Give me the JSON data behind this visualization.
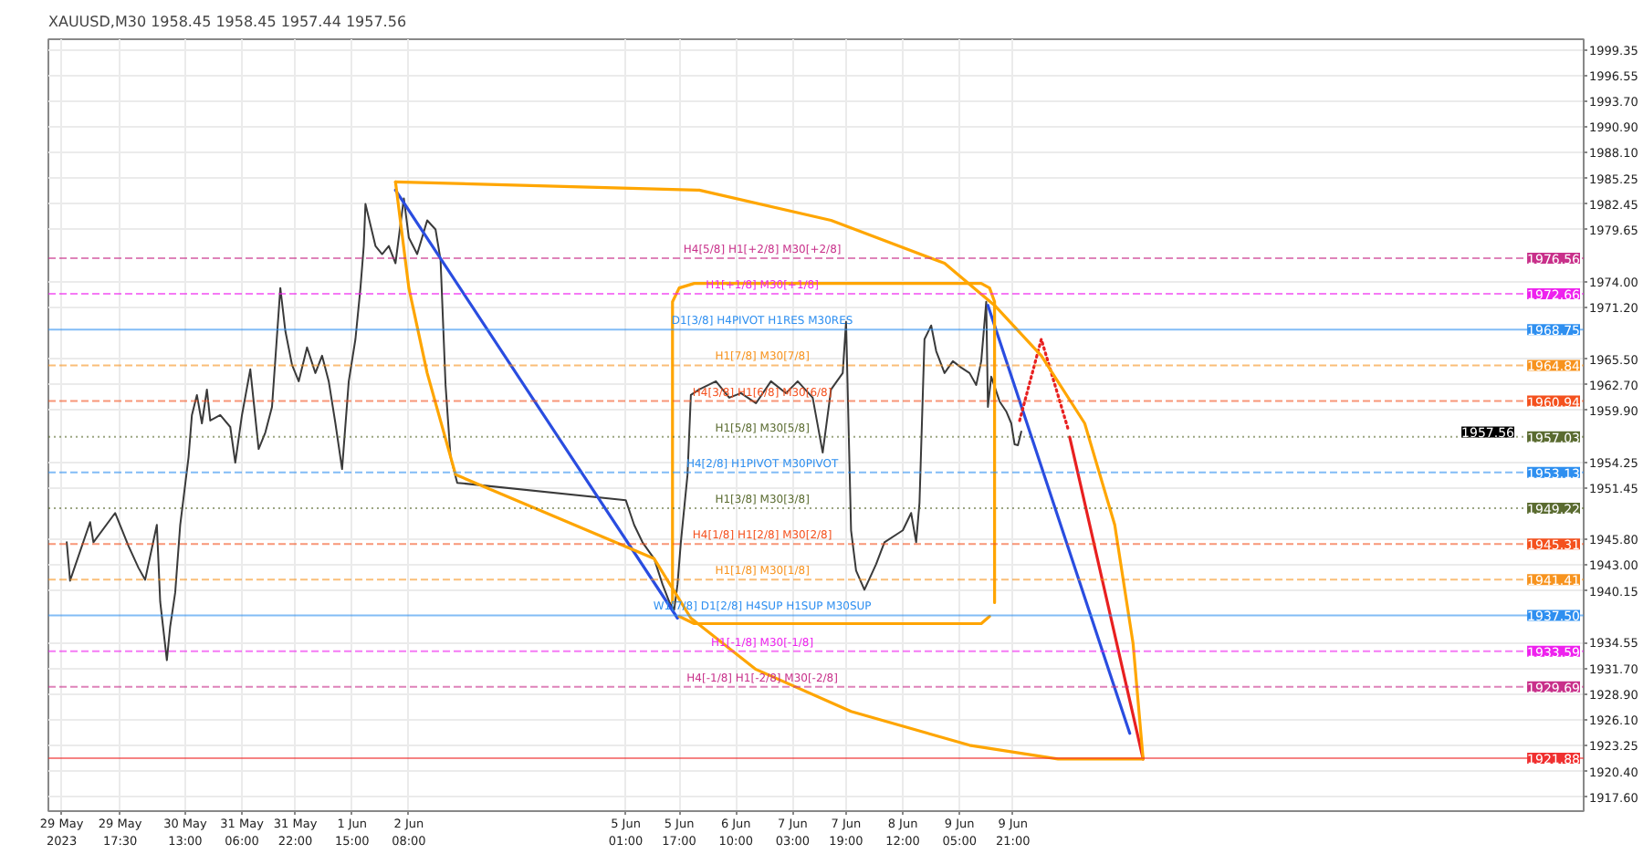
{
  "chart_data": {
    "type": "line",
    "title": "XAUUSD,M30  1958.45 1958.45 1957.44 1957.56",
    "xlim": [
      "2023-05-28T20:00",
      "2023-06-17T00:00"
    ],
    "ylim": [
      1916.1,
      2000.5
    ],
    "xticks": [
      {
        "value": "2023-05-29T00:00",
        "label": "29 May 2023"
      },
      {
        "value": "2023-05-29T17:30",
        "label": "29 May 17:30"
      },
      {
        "value": "2023-05-30T13:00",
        "label": "30 May 13:00"
      },
      {
        "value": "2023-05-31T06:00",
        "label": "31 May 06:00"
      },
      {
        "value": "2023-05-31T22:00",
        "label": "31 May 22:00"
      },
      {
        "value": "2023-06-01T15:00",
        "label": "1 Jun 15:00"
      },
      {
        "value": "2023-06-02T08:00",
        "label": "2 Jun 08:00"
      },
      {
        "value": "2023-06-05T01:00",
        "label": "5 Jun 01:00"
      },
      {
        "value": "2023-06-05T17:00",
        "label": "5 Jun 17:00"
      },
      {
        "value": "2023-06-06T10:00",
        "label": "6 Jun 10:00"
      },
      {
        "value": "2023-06-07T03:00",
        "label": "7 Jun 03:00"
      },
      {
        "value": "2023-06-07T19:00",
        "label": "7 Jun 19:00"
      },
      {
        "value": "2023-06-08T12:00",
        "label": "8 Jun 12:00"
      },
      {
        "value": "2023-06-09T05:00",
        "label": "9 Jun 05:00"
      },
      {
        "value": "2023-06-09T21:00",
        "label": "9 Jun 21:00"
      }
    ],
    "yticks": [
      1999.35,
      1996.55,
      {
        "value": 1993.7,
        "label": "1993.70"
      },
      {
        "value": 1990.9,
        "label": "1990.90"
      },
      {
        "value": 1988.1,
        "label": "1988.10"
      },
      1985.25,
      1982.45,
      1979.65,
      {
        "value": 1974.0,
        "label": "1974.00"
      },
      {
        "value": 1971.2,
        "label": "1971.20"
      },
      {
        "value": 1965.5,
        "label": "1965.50"
      },
      {
        "value": 1962.7,
        "label": "1962.70"
      },
      {
        "value": 1959.9,
        "label": "1959.90"
      },
      1954.25,
      1951.45,
      {
        "value": 1945.8,
        "label": "1945.80"
      },
      {
        "value": 1943.0,
        "label": "1943.00"
      },
      1940.15,
      1934.55,
      {
        "value": 1931.7,
        "label": "1931.70"
      },
      {
        "value": 1928.9,
        "label": "1928.90"
      },
      {
        "value": 1926.1,
        "label": "1926.10"
      },
      1923.25,
      {
        "value": 1920.4,
        "label": "1920.40"
      },
      {
        "value": 1917.6,
        "label": "1917.60"
      }
    ],
    "grid": true,
    "series": [
      {
        "color": "#3a3a3a",
        "line_style": "solid",
        "x": [
          "2023-05-29T01:30",
          "2023-05-29T02:30",
          "2023-05-29T08:30",
          "2023-05-29T09:30",
          "2023-05-29T16:00",
          "2023-05-29T20:00",
          "2023-05-29T23:00",
          "2023-05-30T01:00",
          "2023-05-30T04:30",
          "2023-05-30T05:30",
          "2023-05-30T07:30",
          "2023-05-30T08:30",
          "2023-05-30T10:00",
          "2023-05-30T11:30",
          "2023-05-30T14:00",
          "2023-05-30T15:00",
          "2023-05-30T16:30",
          "2023-05-30T18:00",
          "2023-05-30T19:30",
          "2023-05-30T20:30",
          "2023-05-30T23:30",
          "2023-05-31T02:30",
          "2023-05-31T04:00",
          "2023-05-31T06:00",
          "2023-05-31T08:30",
          "2023-05-31T11:00",
          "2023-05-31T13:00",
          "2023-05-31T15:00",
          "2023-05-31T17:30",
          "2023-05-31T19:00",
          "2023-05-31T21:00",
          "2023-05-31T23:00",
          "2023-06-01T01:30",
          "2023-06-01T04:00",
          "2023-06-01T06:00",
          "2023-06-01T08:00",
          "2023-06-01T10:00",
          "2023-06-01T12:00",
          "2023-06-01T14:00",
          "2023-06-01T16:00",
          "2023-06-01T17:30",
          "2023-06-01T18:30",
          "2023-06-01T19:00",
          "2023-06-01T22:00",
          "2023-06-02T00:00",
          "2023-06-02T02:00",
          "2023-06-02T04:00",
          "2023-06-02T06:30",
          "2023-06-02T08:00",
          "2023-06-02T10:30",
          "2023-06-02T13:30",
          "2023-06-02T16:00",
          "2023-06-02T17:30",
          "2023-06-02T19:00",
          "2023-06-02T20:30",
          "2023-06-02T22:30",
          "2023-06-05T01:00",
          "2023-06-05T03:30",
          "2023-06-05T06:00",
          "2023-06-05T09:30",
          "2023-06-05T12:00",
          "2023-06-05T14:00",
          "2023-06-05T15:30",
          "2023-06-05T16:30",
          "2023-06-05T17:30",
          "2023-06-05T19:30",
          "2023-06-05T20:30",
          "2023-06-05T23:00",
          "2023-06-06T04:00",
          "2023-06-06T08:00",
          "2023-06-06T11:30",
          "2023-06-06T16:00",
          "2023-06-06T20:30",
          "2023-06-07T01:00",
          "2023-06-07T04:30",
          "2023-06-07T09:00",
          "2023-06-07T12:00",
          "2023-06-07T14:30",
          "2023-06-07T18:00",
          "2023-06-07T19:00",
          "2023-06-07T20:30",
          "2023-06-07T22:00",
          "2023-06-08T00:30",
          "2023-06-08T04:00",
          "2023-06-08T06:30",
          "2023-06-08T12:00",
          "2023-06-08T14:30",
          "2023-06-08T16:00",
          "2023-06-08T17:00",
          "2023-06-08T18:30",
          "2023-06-08T20:30",
          "2023-06-08T22:00",
          "2023-06-09T00:30",
          "2023-06-09T03:00",
          "2023-06-09T05:30",
          "2023-06-09T08:00",
          "2023-06-09T10:00",
          "2023-06-09T11:30",
          "2023-06-09T13:00",
          "2023-06-09T13:30",
          "2023-06-09T14:30",
          "2023-06-09T17:00",
          "2023-06-09T19:00",
          "2023-06-09T20:30",
          "2023-06-09T21:30",
          "2023-06-09T22:30",
          "2023-06-09T23:30"
        ],
        "values": [
          1945.5,
          1941.3,
          1947.7,
          1945.5,
          1948.7,
          1945.1,
          1942.7,
          1941.4,
          1947.4,
          1939.0,
          1932.6,
          1936.3,
          1940.0,
          1947.4,
          1954.8,
          1959.4,
          1961.6,
          1958.5,
          1962.2,
          1958.8,
          1959.4,
          1958.1,
          1954.2,
          1959.4,
          1964.4,
          1955.7,
          1957.5,
          1960.3,
          1973.3,
          1968.6,
          1964.9,
          1963.1,
          1966.8,
          1964.0,
          1965.9,
          1963.1,
          1958.5,
          1953.5,
          1963.1,
          1967.7,
          1973.3,
          1977.9,
          1982.5,
          1977.9,
          1977.0,
          1977.9,
          1976.0,
          1983.1,
          1978.8,
          1977.0,
          1980.7,
          1979.7,
          1976.4,
          1962.7,
          1954.8,
          1952.0,
          1950.1,
          1947.4,
          1945.5,
          1943.7,
          1940.9,
          1939.0,
          1938.1,
          1940.9,
          1945.5,
          1952.9,
          1961.6,
          1962.2,
          1963.1,
          1961.3,
          1961.8,
          1960.7,
          1963.1,
          1961.8,
          1963.1,
          1961.3,
          1955.3,
          1962.2,
          1964.0,
          1969.6,
          1946.8,
          1942.4,
          1940.3,
          1943.1,
          1945.5,
          1946.8,
          1948.7,
          1945.5,
          1949.8,
          1967.7,
          1969.2,
          1966.4,
          1964.0,
          1965.3,
          1964.6,
          1964.0,
          1962.7,
          1965.3,
          1971.8,
          1960.3,
          1963.6,
          1960.9,
          1959.8,
          1958.5,
          1956.2,
          1956.1,
          1957.6
        ]
      },
      {
        "color": "#2a4de0",
        "line_style": "solid",
        "x": [
          "2023-06-02T04:00",
          "2023-06-05T16:30"
        ],
        "values": [
          1984.0,
          1937.2
        ]
      },
      {
        "color": "#2a4de0",
        "line_style": "solid",
        "x": [
          "2023-06-09T13:30",
          "2023-06-11T08:00"
        ],
        "values": [
          1971.4,
          1924.6
        ]
      },
      {
        "color": "#e82020",
        "line_style": "solid",
        "x": [
          "2023-06-10T14:00",
          "2023-06-11T12:00"
        ],
        "values": [
          1957.0,
          1921.8
        ]
      },
      {
        "color": "#e82020",
        "line_style": "dotted",
        "x": [
          "2023-06-09T23:00",
          "2023-06-10T05:30",
          "2023-06-10T13:30"
        ],
        "values": [
          1958.8,
          1967.7,
          1957.9
        ]
      },
      {
        "color": "#ffa500",
        "line_style": "solid",
        "x": [
          "2023-06-05T15:00",
          "2023-06-05T15:00",
          "2023-06-05T17:00",
          "2023-06-05T21:30",
          "2023-06-09T11:30",
          "2023-06-09T14:00",
          "2023-06-09T15:30",
          "2023-06-09T15:30"
        ],
        "values": [
          1938.9,
          1971.8,
          1973.3,
          1973.8,
          1973.8,
          1973.3,
          1971.8,
          1938.9
        ]
      },
      {
        "color": "#ffa400",
        "line_style": "solid",
        "x": [
          "2023-06-05T17:00",
          "2023-06-05T21:30",
          "2023-06-09T11:30",
          "2023-06-09T14:00"
        ],
        "values": [
          1937.4,
          1936.6,
          1936.6,
          1937.4
        ]
      },
      {
        "color": "#fea500",
        "line_style": "solid",
        "x": [
          "2023-06-02T04:00",
          "2023-06-02T08:00",
          "2023-06-02T13:30",
          "2023-06-02T22:00",
          "2023-06-05T09:30",
          "2023-06-05T20:30",
          "2023-06-06T16:00",
          "2023-06-07T20:30",
          "2023-06-09T08:00",
          "2023-06-10T10:30",
          "2023-06-11T12:00"
        ],
        "values": [
          1984.9,
          1973.3,
          1964.0,
          1952.9,
          1943.7,
          1937.2,
          1931.6,
          1927.0,
          1923.3,
          1921.8,
          1921.8
        ]
      },
      {
        "color": "#ffa600",
        "line_style": "solid",
        "x": [
          "2023-06-02T04:00",
          "2023-06-05T23:00",
          "2023-06-07T14:30",
          "2023-06-09T00:30",
          "2023-06-09T15:30",
          "2023-06-10T05:30",
          "2023-06-10T18:30",
          "2023-06-11T03:30",
          "2023-06-11T09:00",
          "2023-06-11T12:00"
        ],
        "values": [
          1984.9,
          1984.0,
          1980.7,
          1976.0,
          1971.4,
          1965.9,
          1958.5,
          1947.4,
          1934.4,
          1921.8
        ]
      }
    ],
    "ref_lines": [
      {
        "axis": "y",
        "value": 1976.56,
        "label": "H4[5/8] H1[+2/8] M30[+2/8]",
        "color": "#c8308a",
        "line_style": "dashed"
      },
      {
        "axis": "y",
        "value": 1972.66,
        "label": "H1[+1/8] M30[+1/8]",
        "color": "#ee22ee",
        "line_style": "dashed"
      },
      {
        "axis": "y",
        "value": 1968.75,
        "label": "D1[3/8] H4PIVOT H1RES M30RES",
        "color": "#2e8ff0",
        "line_style": "solid"
      },
      {
        "axis": "y",
        "value": 1964.84,
        "label": "H1[7/8] M30[7/8]",
        "color": "#f7931e",
        "line_style": "dashed"
      },
      {
        "axis": "y",
        "value": 1960.94,
        "label": "H4[3/8] H1[6/8] M30[6/8]",
        "color": "#f4511e",
        "line_style": "dashed"
      },
      {
        "axis": "y",
        "value": 1957.03,
        "label": "H1[5/8] M30[5/8]",
        "color": "#5a6b30",
        "line_style": "dotted"
      },
      {
        "axis": "y",
        "value": 1953.13,
        "label": "H4[2/8] H1PIVOT M30PIVOT",
        "color": "#2e8ff0",
        "line_style": "dashed"
      },
      {
        "axis": "y",
        "value": 1949.22,
        "label": "H1[3/8] M30[3/8]",
        "color": "#5a6b30",
        "line_style": "dotted"
      },
      {
        "axis": "y",
        "value": 1945.31,
        "label": "H4[1/8] H1[2/8] M30[2/8]",
        "color": "#f4511e",
        "line_style": "dashed"
      },
      {
        "axis": "y",
        "value": 1941.41,
        "label": "H1[1/8] M30[1/8]",
        "color": "#f7931e",
        "line_style": "dashed"
      },
      {
        "axis": "y",
        "value": 1937.5,
        "label": "W1[7/8] D1[2/8] H4SUP H1SUP M30SUP",
        "color": "#2e8ff0",
        "line_style": "solid"
      },
      {
        "axis": "y",
        "value": 1933.59,
        "label": "H1[-1/8] M30[-1/8]",
        "color": "#ee22ee",
        "line_style": "dashed"
      },
      {
        "axis": "y",
        "value": 1929.69,
        "label": "H4[-1/8] H1[-2/8] M30[-2/8]",
        "color": "#c8308a",
        "line_style": "dashed"
      },
      {
        "axis": "y",
        "value": 1921.88,
        "color": "#f03030",
        "line_style": "solid"
      }
    ],
    "annotations": [
      {
        "text": "1976.56",
        "y": 1976.56
      },
      {
        "text": "1972.66",
        "y": 1972.66
      },
      {
        "text": "1968.75",
        "y": 1968.75
      },
      {
        "text": "1964.84",
        "y": 1964.84
      },
      {
        "text": "1960.94",
        "y": 1960.94
      },
      {
        "text": "1957.03",
        "y": 1957.03
      },
      {
        "text": "1953.13",
        "y": 1953.13
      },
      {
        "text": "1949.22",
        "y": 1949.22
      },
      {
        "text": "1945.31",
        "y": 1945.31
      },
      {
        "text": "1941.41",
        "y": 1941.41
      },
      {
        "text": "1937.50",
        "y": 1937.5
      },
      {
        "text": "1933.59",
        "y": 1933.59
      },
      {
        "text": "1929.69",
        "y": 1929.69
      },
      {
        "text": "1921.88",
        "y": 1921.88
      },
      {
        "text": "1957.56",
        "y": 1957.56
      }
    ]
  }
}
